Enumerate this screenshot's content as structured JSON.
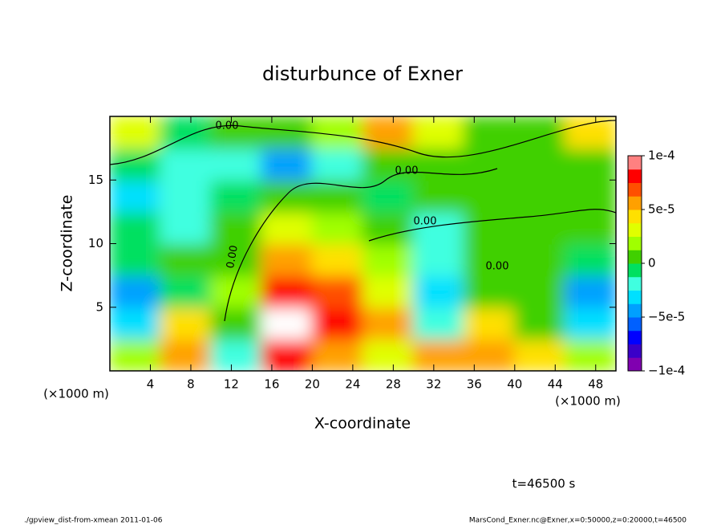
{
  "chart_data": {
    "type": "heatmap",
    "title": "disturbunce of Exner",
    "x_label": "X-coordinate",
    "y_label": "Z-coordinate",
    "x_unit": "(×1000 m)",
    "y_unit": "(×1000 m)",
    "time_label": "t=46500 s",
    "footer_left": "./gpview_dist-from-xmean  2011-01-06",
    "footer_right": "MarsCond_Exner.nc@Exner,x=0:50000,z=0:20000,t=46500",
    "contour_labels": [
      "0.00",
      "0.00",
      "0.00",
      "0.00",
      "0.00"
    ],
    "xlim": [
      0,
      50
    ],
    "ylim": [
      0,
      20
    ],
    "xticks": [
      4,
      8,
      12,
      16,
      20,
      24,
      28,
      32,
      36,
      40,
      44,
      48
    ],
    "yticks": [
      5,
      10,
      15
    ],
    "x": [
      2.5,
      7.5,
      12.5,
      17.5,
      22.5,
      27.5,
      32.5,
      37.5,
      42.5,
      47.5
    ],
    "y": [
      1.25,
      3.75,
      6.25,
      8.75,
      11.25,
      13.75,
      16.25,
      18.75
    ],
    "values": [
      [
        2e-05,
        5e-05,
        -2e-05,
        8e-05,
        6e-05,
        3e-05,
        6e-05,
        5e-05,
        4e-05,
        2e-05
      ],
      [
        -3e-05,
        4e-05,
        1e-05,
        0.00011,
        8e-05,
        5e-05,
        -2e-05,
        4e-05,
        0,
        -3e-05
      ],
      [
        -4e-05,
        -1e-05,
        2e-05,
        8e-05,
        7e-05,
        3e-05,
        -3e-05,
        1e-05,
        0,
        -5e-05
      ],
      [
        -1e-05,
        0,
        1e-05,
        5e-05,
        4e-05,
        2e-05,
        -2e-05,
        0,
        0,
        -1e-05
      ],
      [
        -1e-05,
        -2e-05,
        0,
        3e-05,
        2e-05,
        1e-05,
        -2e-05,
        1e-05,
        1e-05,
        0
      ],
      [
        -3e-05,
        -2e-05,
        -1e-05,
        0,
        0,
        -1e-05,
        0,
        1e-05,
        1e-05,
        1e-05
      ],
      [
        -1e-05,
        -2e-05,
        -2e-05,
        -4e-05,
        -2e-05,
        1e-05,
        1e-05,
        0,
        0,
        1e-05
      ],
      [
        3e-05,
        -1e-05,
        0,
        1e-05,
        2e-05,
        5e-05,
        3e-05,
        0,
        0,
        4e-05
      ]
    ],
    "clim": [
      -0.0001,
      0.0001
    ],
    "cticks": [
      {
        "value": -0.0001,
        "label": "−1e-4"
      },
      {
        "value": -5e-05,
        "label": "−5e-5"
      },
      0,
      {
        "value": 5e-05,
        "label": "5e-5"
      },
      {
        "value": 0.0001,
        "label": "1e-4"
      }
    ],
    "colors": [
      "#8000b0",
      "#3a00c8",
      "#0000ff",
      "#0060ff",
      "#00a0ff",
      "#00e0ff",
      "#40ffe0",
      "#00e060",
      "#40d000",
      "#a0ff00",
      "#e0ff00",
      "#ffe000",
      "#ffa000",
      "#ff5000",
      "#ff0000",
      "#ff8080"
    ],
    "over_color": "#ffffff"
  }
}
